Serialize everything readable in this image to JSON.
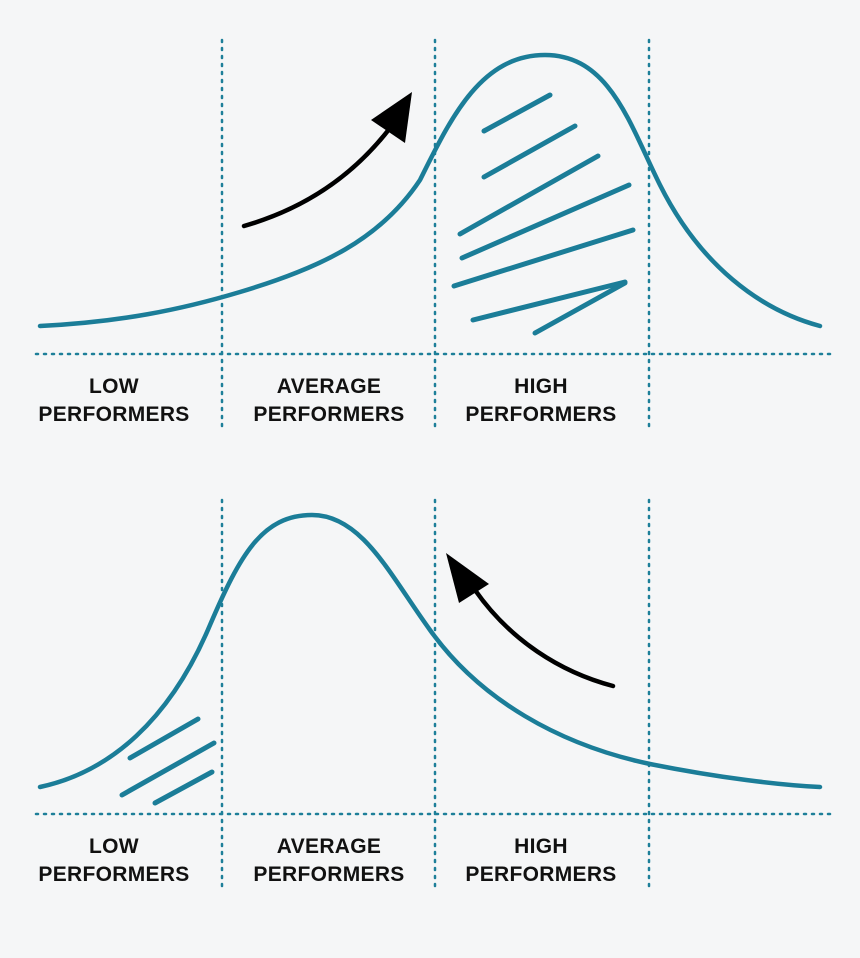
{
  "colors": {
    "background": "#f5f6f7",
    "curve": "#1b7d98",
    "divider": "#1d7f99",
    "arrow": "#000000",
    "text": "#111111"
  },
  "top_panel": {
    "categories": [
      {
        "line1": "LOW",
        "line2": "PERFORMERS"
      },
      {
        "line1": "AVERAGE",
        "line2": "PERFORMERS"
      },
      {
        "line1": "HIGH",
        "line2": "PERFORMERS"
      }
    ],
    "shaded_region": "HIGH PERFORMERS",
    "arrow_direction": "right"
  },
  "bottom_panel": {
    "categories": [
      {
        "line1": "LOW",
        "line2": "PERFORMERS"
      },
      {
        "line1": "AVERAGE",
        "line2": "PERFORMERS"
      },
      {
        "line1": "HIGH",
        "line2": "PERFORMERS"
      }
    ],
    "shaded_region": "LOW PERFORMERS",
    "arrow_direction": "left"
  }
}
